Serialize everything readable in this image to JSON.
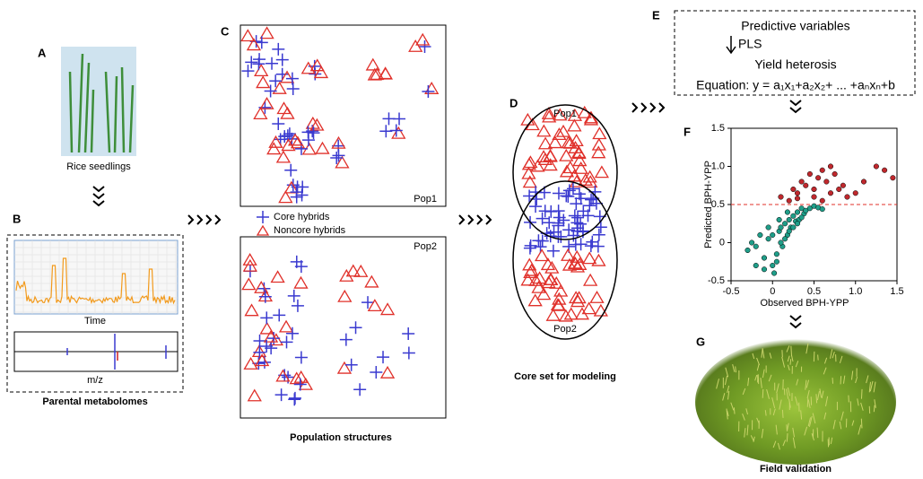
{
  "panels": {
    "A": {
      "label": "A",
      "caption": "Rice seedlings"
    },
    "B": {
      "label": "B",
      "x_label_top": "Time",
      "x_label_bottom": "m/z",
      "caption": "Parental metabolomes"
    },
    "C": {
      "label": "C",
      "pop1": "Pop1",
      "pop2": "Pop2",
      "legend": [
        "Core hybrids",
        "Noncore hybrids"
      ],
      "caption": "Population structures"
    },
    "D": {
      "label": "D",
      "pop1": "Pop1",
      "pop2": "Pop2",
      "caption": "Core set for modeling"
    },
    "E": {
      "label": "E",
      "line1": "Predictive variables",
      "method": "PLS",
      "line2": "Yield heterosis",
      "equation": "Equation: y = a₁x₁+a₂x₂+ ... +aₙxₙ+b"
    },
    "F": {
      "label": "F",
      "x_label": "Observed BPH-YPP",
      "y_label": "Predicted BPH-YPP",
      "xlim": [
        -0.5,
        1.5
      ],
      "ylim": [
        -0.5,
        1.5
      ],
      "xticks": [
        -0.5,
        0,
        0.5,
        {
          "value": 1,
          "label": "1.0"
        },
        1.5
      ],
      "yticks": [
        -0.5,
        0,
        0.5,
        {
          "value": 1,
          "label": "1.0"
        },
        1.5
      ],
      "threshold": 0.5,
      "threshold_color": "#e0302a",
      "series": [
        {
          "color": "#1f9e89",
          "x": [
            -0.3,
            -0.25,
            -0.2,
            -0.15,
            -0.1,
            -0.05,
            0,
            0.02,
            0.05,
            0.08,
            0.1,
            0.12,
            0.15,
            0.18,
            0.2,
            0.22,
            0.25,
            0.28,
            0.3,
            0.32,
            0.35,
            0.38,
            0.4,
            0.45,
            0.5,
            0.55,
            0.6,
            -0.2,
            -0.1,
            0,
            0.05,
            0.1,
            0.15,
            0.2,
            0.25,
            0.3,
            0.35,
            -0.05,
            0.08,
            0.18
          ],
          "y": [
            -0.1,
            0.0,
            -0.05,
            0.1,
            -0.2,
            0.05,
            -0.3,
            -0.4,
            -0.15,
            0.15,
            0.2,
            -0.05,
            0.25,
            0.1,
            0.3,
            0.2,
            0.35,
            0.28,
            0.4,
            0.3,
            0.45,
            0.38,
            0.42,
            0.45,
            0.48,
            0.46,
            0.44,
            -0.3,
            -0.35,
            0.1,
            -0.25,
            0.0,
            0.05,
            0.15,
            0.2,
            0.25,
            0.33,
            0.2,
            0.3,
            0.4
          ]
        },
        {
          "color": "#c0282d",
          "x": [
            0.1,
            0.2,
            0.25,
            0.3,
            0.35,
            0.4,
            0.45,
            0.5,
            0.55,
            0.6,
            0.65,
            0.7,
            0.75,
            0.8,
            0.85,
            0.9,
            1.0,
            1.1,
            1.25,
            1.35,
            1.45,
            0.5,
            0.6,
            0.7,
            0.3
          ],
          "y": [
            0.6,
            0.55,
            0.7,
            0.65,
            0.8,
            0.75,
            0.9,
            0.7,
            0.85,
            0.95,
            0.8,
            1.0,
            0.9,
            0.7,
            0.75,
            0.6,
            0.65,
            0.8,
            1.0,
            0.95,
            0.85,
            0.6,
            0.55,
            0.65,
            0.58
          ]
        }
      ]
    },
    "G": {
      "label": "G",
      "caption": "Field validation"
    }
  }
}
